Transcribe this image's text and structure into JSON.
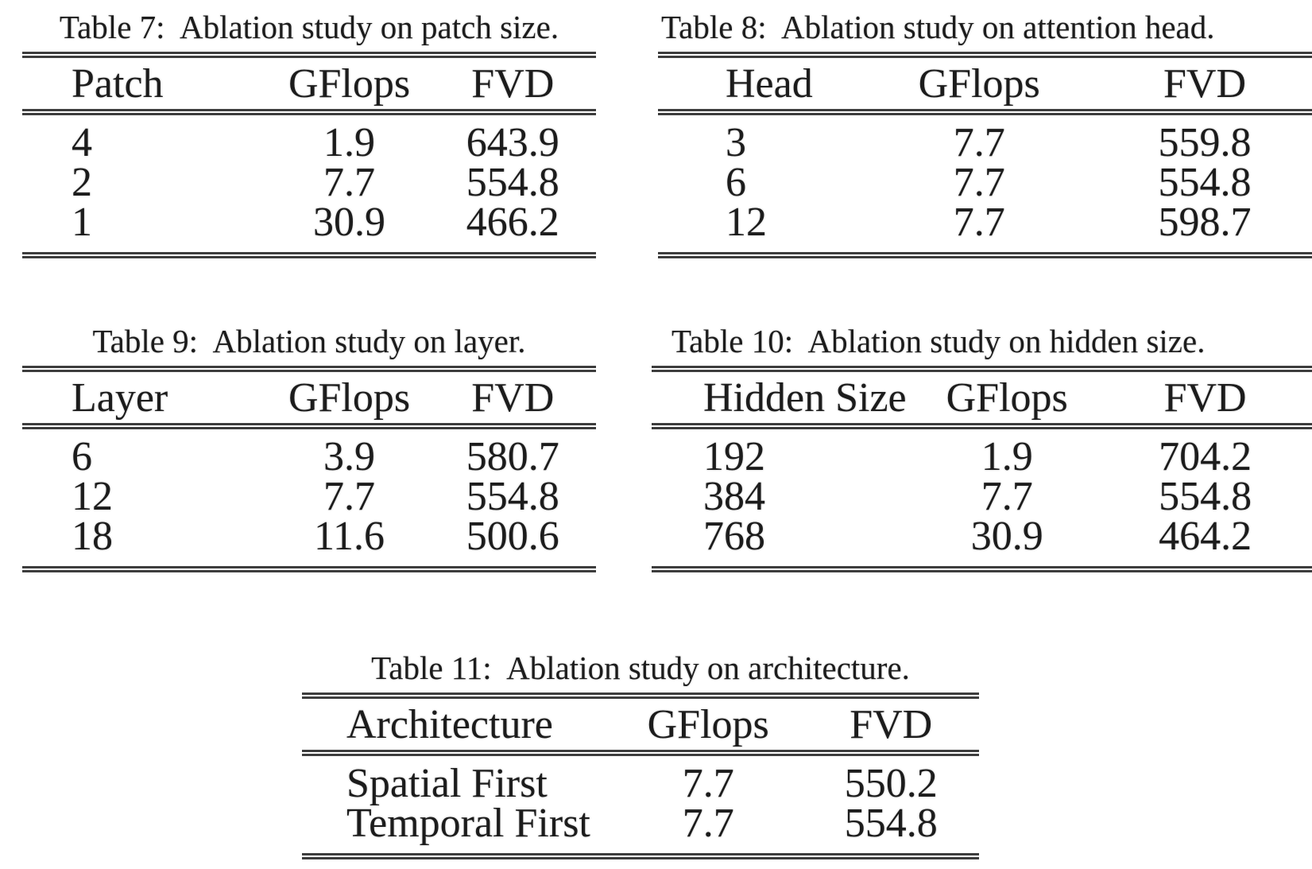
{
  "page": {
    "background_color": "#ffffff",
    "text_color": "#1c1c1c",
    "rule_color": "#3d3d3d"
  },
  "tables": [
    {
      "id": "table-7",
      "caption_label": "Table 7:",
      "caption_text": "Ablation study on patch size.",
      "columns": [
        "Patch",
        "GFlops",
        "FVD"
      ],
      "rows": [
        [
          "4",
          "1.9",
          "643.9"
        ],
        [
          "2",
          "7.7",
          "554.8"
        ],
        [
          "1",
          "30.9",
          "466.2"
        ]
      ]
    },
    {
      "id": "table-8",
      "caption_label": "Table 8:",
      "caption_text": "Ablation study on attention head.",
      "columns": [
        "Head",
        "GFlops",
        "FVD"
      ],
      "rows": [
        [
          "3",
          "7.7",
          "559.8"
        ],
        [
          "6",
          "7.7",
          "554.8"
        ],
        [
          "12",
          "7.7",
          "598.7"
        ]
      ]
    },
    {
      "id": "table-9",
      "caption_label": "Table 9:",
      "caption_text": "Ablation study on layer.",
      "columns": [
        "Layer",
        "GFlops",
        "FVD"
      ],
      "rows": [
        [
          "6",
          "3.9",
          "580.7"
        ],
        [
          "12",
          "7.7",
          "554.8"
        ],
        [
          "18",
          "11.6",
          "500.6"
        ]
      ]
    },
    {
      "id": "table-10",
      "caption_label": "Table 10:",
      "caption_text": "Ablation study on hidden size.",
      "columns": [
        "Hidden Size",
        "GFlops",
        "FVD"
      ],
      "rows": [
        [
          "192",
          "1.9",
          "704.2"
        ],
        [
          "384",
          "7.7",
          "554.8"
        ],
        [
          "768",
          "30.9",
          "464.2"
        ]
      ]
    },
    {
      "id": "table-11",
      "caption_label": "Table 11:",
      "caption_text": "Ablation study on architecture.",
      "columns": [
        "Architecture",
        "GFlops",
        "FVD"
      ],
      "rows": [
        [
          "Spatial First",
          "7.7",
          "550.2"
        ],
        [
          "Temporal First",
          "7.7",
          "554.8"
        ]
      ]
    }
  ]
}
